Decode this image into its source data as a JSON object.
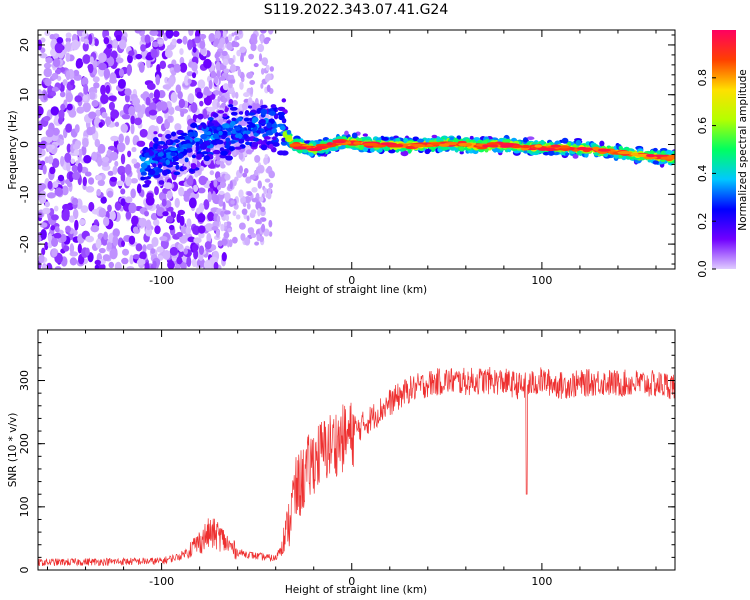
{
  "figure": {
    "title": "S119.2022.343.07.41.G24"
  },
  "chart_data": [
    {
      "type": "heatmap",
      "xlabel": "Height of straight line (km)",
      "ylabel": "Frequency (Hz)",
      "xlim": [
        -165,
        170
      ],
      "ylim": [
        -25,
        23
      ],
      "xticks": [
        -100,
        0,
        100
      ],
      "xtick_labels": [
        "-100",
        "0",
        "100"
      ],
      "yticks": [
        -20,
        -10,
        0,
        10,
        20
      ],
      "ytick_labels": [
        "-20",
        "-10",
        "0",
        "10",
        "20"
      ],
      "grid": false,
      "ridge": {
        "x": [
          -110,
          -100,
          -90,
          -80,
          -70,
          -60,
          -50,
          -45,
          -40,
          -35,
          -30,
          -25,
          -20,
          -15,
          -10,
          -5,
          0,
          10,
          20,
          30,
          40,
          50,
          60,
          70,
          80,
          90,
          100,
          110,
          120,
          130,
          140,
          150,
          160,
          170
        ],
        "y": [
          -4,
          -3,
          -1,
          1,
          2,
          3,
          4,
          4.5,
          4,
          2,
          0,
          -0.5,
          -1,
          -0.5,
          0,
          0.5,
          0.5,
          0,
          0,
          -0.3,
          0,
          0.2,
          0,
          -0.3,
          0,
          -0.5,
          -0.6,
          -0.7,
          -0.8,
          -1.2,
          -1.5,
          -2,
          -2.5,
          -2.7
        ]
      },
      "colorbar": {
        "label": "Normalized spectral amplitude",
        "range": [
          0,
          1
        ],
        "ticks": [
          0.0,
          0.2,
          0.4,
          0.6,
          0.8
        ],
        "tick_labels": [
          "0.0",
          "0.2",
          "0.4",
          "0.6",
          "0.8"
        ],
        "colormap": [
          "#e0ccff",
          "#7000ff",
          "#0000ff",
          "#00c8ff",
          "#00ff60",
          "#b4ff00",
          "#ffe000",
          "#ff4000",
          "#ff0060"
        ]
      }
    },
    {
      "type": "line",
      "xlabel": "Height of straight line (km)",
      "ylabel": "SNR (10 * v/v)",
      "xlim": [
        -165,
        170
      ],
      "ylim": [
        0,
        380
      ],
      "xticks": [
        -100,
        0,
        100
      ],
      "xtick_labels": [
        "-100",
        "0",
        "100"
      ],
      "yticks": [
        0,
        100,
        200,
        300
      ],
      "ytick_labels": [
        "0",
        "100",
        "200",
        "300"
      ],
      "grid": false,
      "color": "#ee3030",
      "envelope": {
        "x": [
          -165,
          -100,
          -90,
          -80,
          -75,
          -70,
          -65,
          -60,
          -50,
          -40,
          -35,
          -30,
          -20,
          -10,
          0,
          10,
          20,
          30,
          40,
          50,
          60,
          70,
          80,
          90,
          100,
          110,
          120,
          130,
          140,
          150,
          160,
          170
        ],
        "y": [
          12,
          14,
          22,
          45,
          58,
          55,
          40,
          28,
          22,
          18,
          55,
          120,
          175,
          200,
          215,
          240,
          265,
          285,
          295,
          300,
          298,
          300,
          298,
          290,
          300,
          292,
          295,
          298,
          295,
          296,
          294,
          292
        ]
      },
      "notable_points": [
        {
          "x": 92,
          "y": 120
        }
      ]
    }
  ]
}
